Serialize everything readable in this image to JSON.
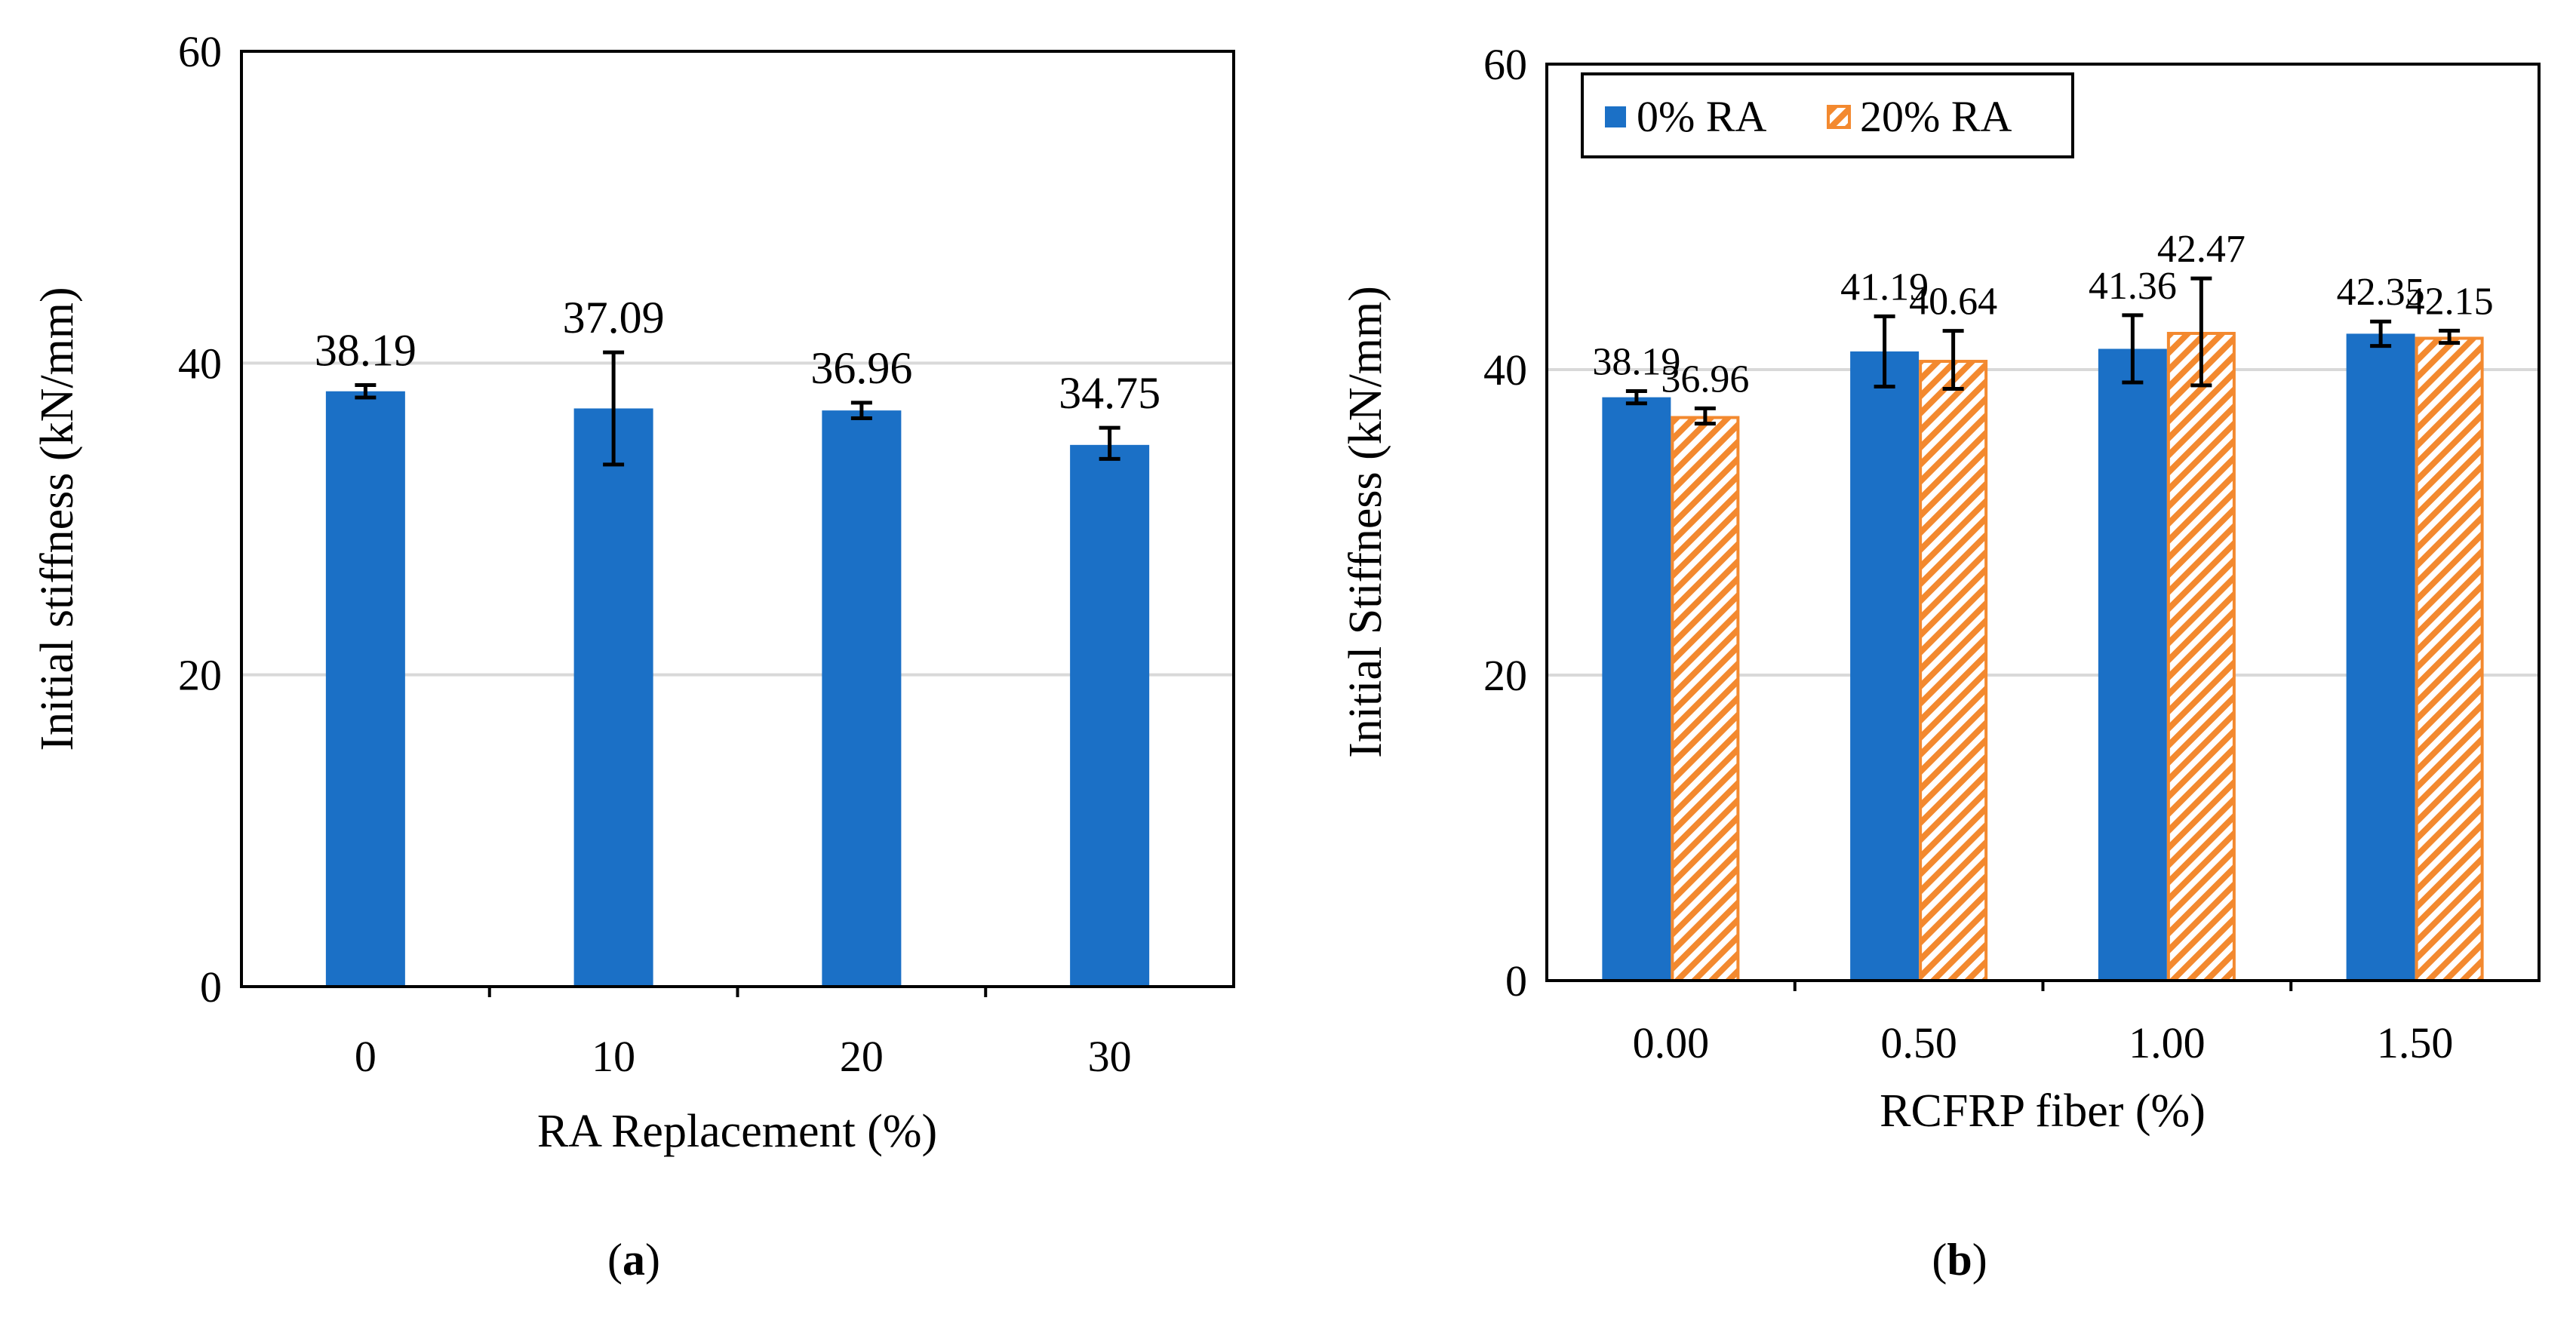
{
  "chart_data": [
    {
      "type": "bar",
      "panel": "a",
      "caption_letter": "a",
      "categories": [
        "0",
        "10",
        "20",
        "30"
      ],
      "series": [
        {
          "name": "Initial stiffness",
          "values": [
            38.19,
            37.09,
            36.96,
            34.75
          ],
          "error_low": [
            0.4,
            3.6,
            0.5,
            0.9
          ],
          "error_high": [
            0.4,
            3.6,
            0.5,
            1.1
          ],
          "color": "#1b70c6"
        }
      ],
      "data_labels": [
        "38.19",
        "37.09",
        "36.96",
        "34.75"
      ],
      "title": "",
      "xlabel": "RA Replacement (%)",
      "ylabel": "Initial stiffness (kN/mm)",
      "ylim": [
        0,
        60
      ],
      "yticks": [
        "0",
        "20",
        "40",
        "60"
      ],
      "grid": true,
      "legend": "none"
    },
    {
      "type": "bar",
      "panel": "b",
      "caption_letter": "b",
      "categories": [
        "0.00",
        "0.50",
        "1.00",
        "1.50"
      ],
      "series": [
        {
          "name": "0% RA",
          "values": [
            38.19,
            41.19,
            41.36,
            42.35
          ],
          "error_low": [
            0.4,
            2.3,
            2.2,
            0.8
          ],
          "error_high": [
            0.4,
            2.3,
            2.2,
            0.8
          ],
          "color": "#1b70c6",
          "pattern": "solid"
        },
        {
          "name": "20% RA",
          "values": [
            36.96,
            40.64,
            42.47,
            42.15
          ],
          "error_low": [
            0.5,
            1.9,
            3.5,
            0.4
          ],
          "error_high": [
            0.5,
            1.9,
            3.5,
            0.4
          ],
          "color": "#f3892f",
          "pattern": "diagonal-hatch"
        }
      ],
      "data_labels": [
        [
          "38.19",
          "41.19",
          "41.36",
          "42.35"
        ],
        [
          "36.96",
          "40.64",
          "42.47",
          "42.15"
        ]
      ],
      "title": "",
      "xlabel": "RCFRP fiber (%)",
      "ylabel": "Initial Stiffness (kN/mm)",
      "ylim": [
        0,
        60
      ],
      "yticks": [
        "0",
        "20",
        "40",
        "60"
      ],
      "grid": true,
      "legend": "top-left"
    }
  ]
}
